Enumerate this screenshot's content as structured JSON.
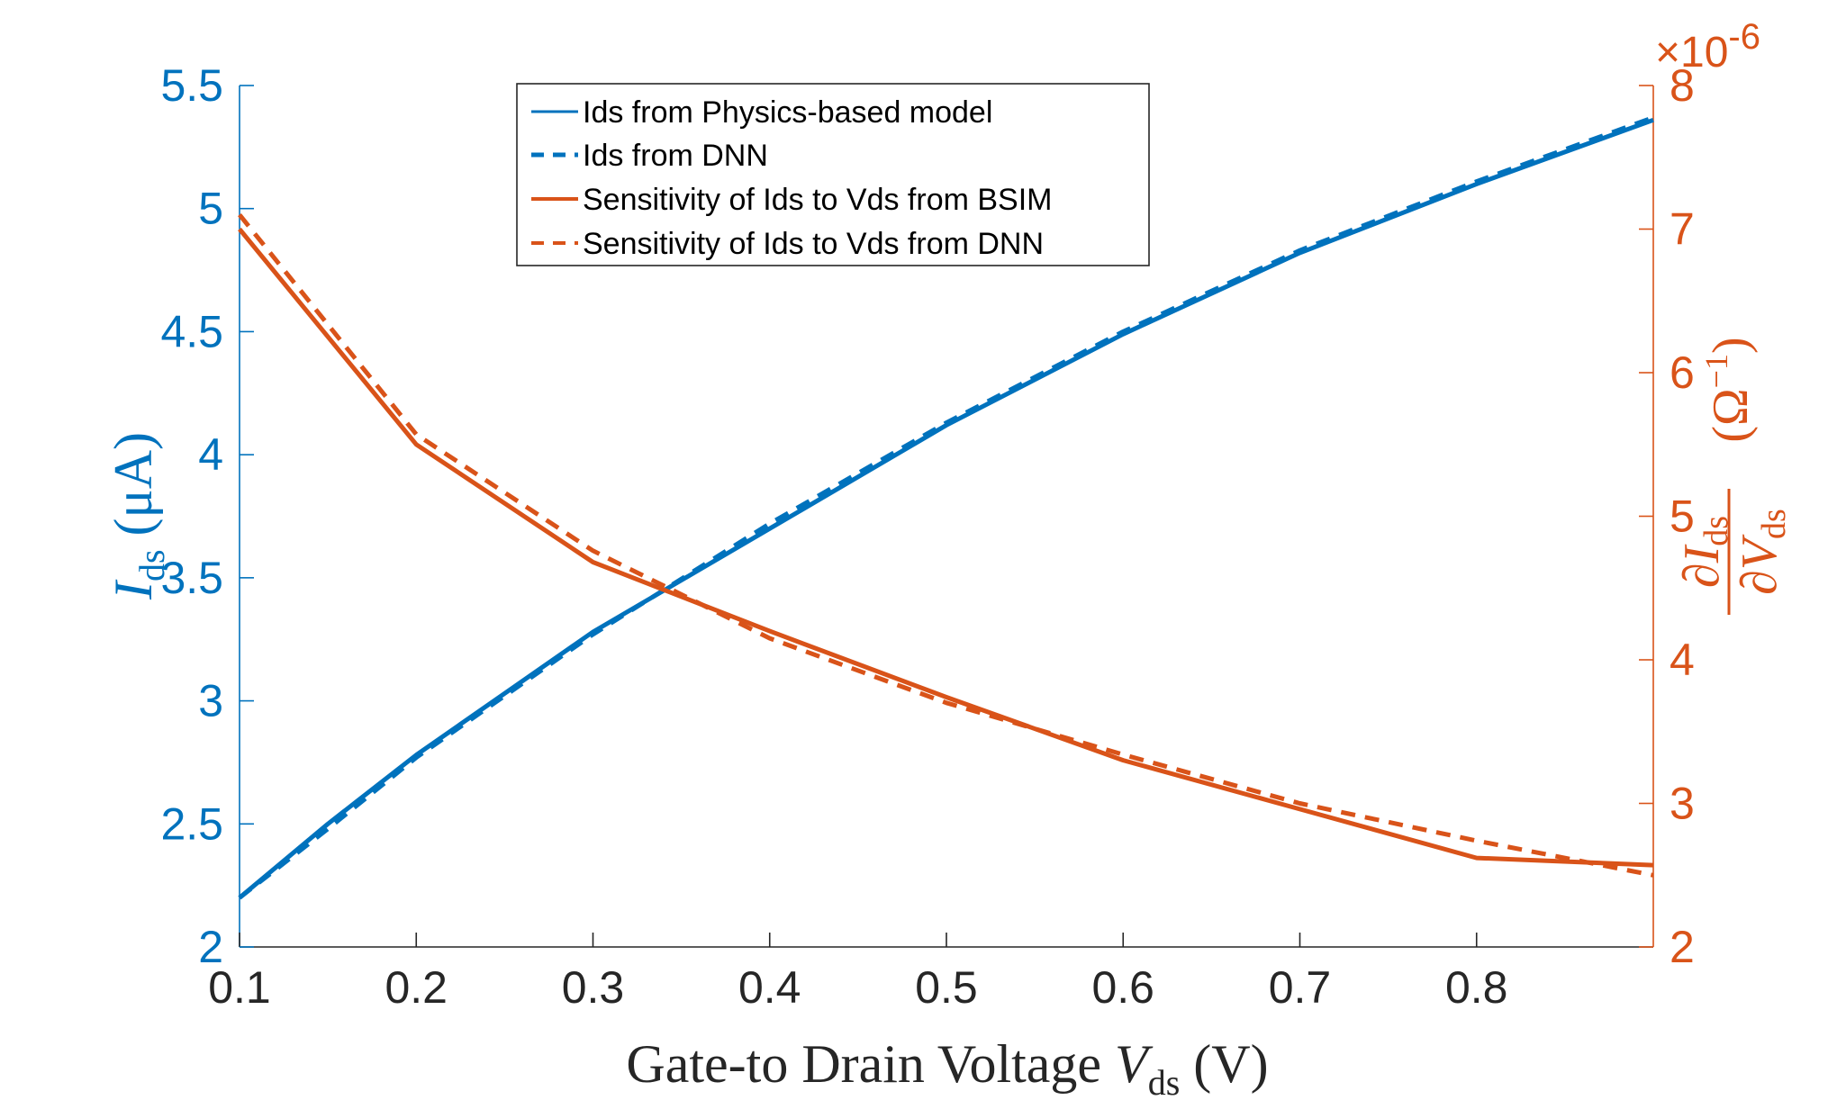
{
  "colors": {
    "blue": "#0072BD",
    "orange": "#D95319",
    "axis_dark": "#262626"
  },
  "chart_data": {
    "type": "line",
    "title": "",
    "xlabel": {
      "main": "Gate-to Drain Voltage ",
      "var": "V",
      "sub": "ds",
      "unit": " (V)"
    },
    "ylabel_left": {
      "var": "I",
      "sub": "ds",
      "unit": " (μA)"
    },
    "ylabel_right": {
      "partial_num": "∂I",
      "partial_den": "∂V",
      "sub": "ds",
      "unit": "(Ω",
      "unit_exp": "−1",
      "unit_close": ")"
    },
    "xlim": [
      0.1,
      0.9
    ],
    "ylim_left": [
      2,
      5.5
    ],
    "ylim_right": [
      2,
      8
    ],
    "right_exponent_label": "×10",
    "right_exponent_power": "-6",
    "x_ticks": [
      "0.1",
      "0.2",
      "0.3",
      "0.4",
      "0.5",
      "0.6",
      "0.7",
      "0.8"
    ],
    "y_left_ticks": [
      "2",
      "2.5",
      "3",
      "3.5",
      "4",
      "4.5",
      "5",
      "5.5"
    ],
    "y_right_ticks": [
      "2",
      "3",
      "4",
      "5",
      "6",
      "7",
      "8"
    ],
    "legend": {
      "position": "top-center",
      "entries": [
        "Ids from Physics-based model",
        "Ids from DNN",
        "Sensitivity of Ids to Vds from BSIM",
        "Sensitivity of Ids to Vds from DNN"
      ]
    },
    "series": [
      {
        "name": "Ids from Physics-based model",
        "axis": "left",
        "style": "solid",
        "color": "#0072BD",
        "x": [
          0.1,
          0.15,
          0.2,
          0.3,
          0.4,
          0.5,
          0.6,
          0.7,
          0.8,
          0.9
        ],
        "y": [
          2.2,
          2.5,
          2.78,
          3.28,
          3.7,
          4.12,
          4.49,
          4.82,
          5.1,
          5.36
        ]
      },
      {
        "name": "Ids from DNN",
        "axis": "left",
        "style": "dashed",
        "color": "#0072BD",
        "x": [
          0.1,
          0.15,
          0.2,
          0.3,
          0.4,
          0.5,
          0.6,
          0.7,
          0.8,
          0.9
        ],
        "y": [
          2.2,
          2.48,
          2.77,
          3.27,
          3.72,
          4.13,
          4.5,
          4.83,
          5.11,
          5.37
        ]
      },
      {
        "name": "Sensitivity of Ids to Vds from BSIM",
        "axis": "right",
        "style": "solid",
        "color": "#D95319",
        "x": [
          0.1,
          0.2,
          0.3,
          0.4,
          0.5,
          0.6,
          0.7,
          0.8,
          0.9
        ],
        "y": [
          7.0,
          5.5,
          4.68,
          4.2,
          3.74,
          3.3,
          2.96,
          2.62,
          2.57
        ]
      },
      {
        "name": "Sensitivity of Ids to Vds from DNN",
        "axis": "right",
        "style": "dashed",
        "color": "#D95319",
        "x": [
          0.1,
          0.2,
          0.3,
          0.4,
          0.5,
          0.6,
          0.7,
          0.8,
          0.9
        ],
        "y": [
          7.1,
          5.57,
          4.76,
          4.15,
          3.7,
          3.34,
          3.0,
          2.74,
          2.5
        ]
      }
    ]
  }
}
